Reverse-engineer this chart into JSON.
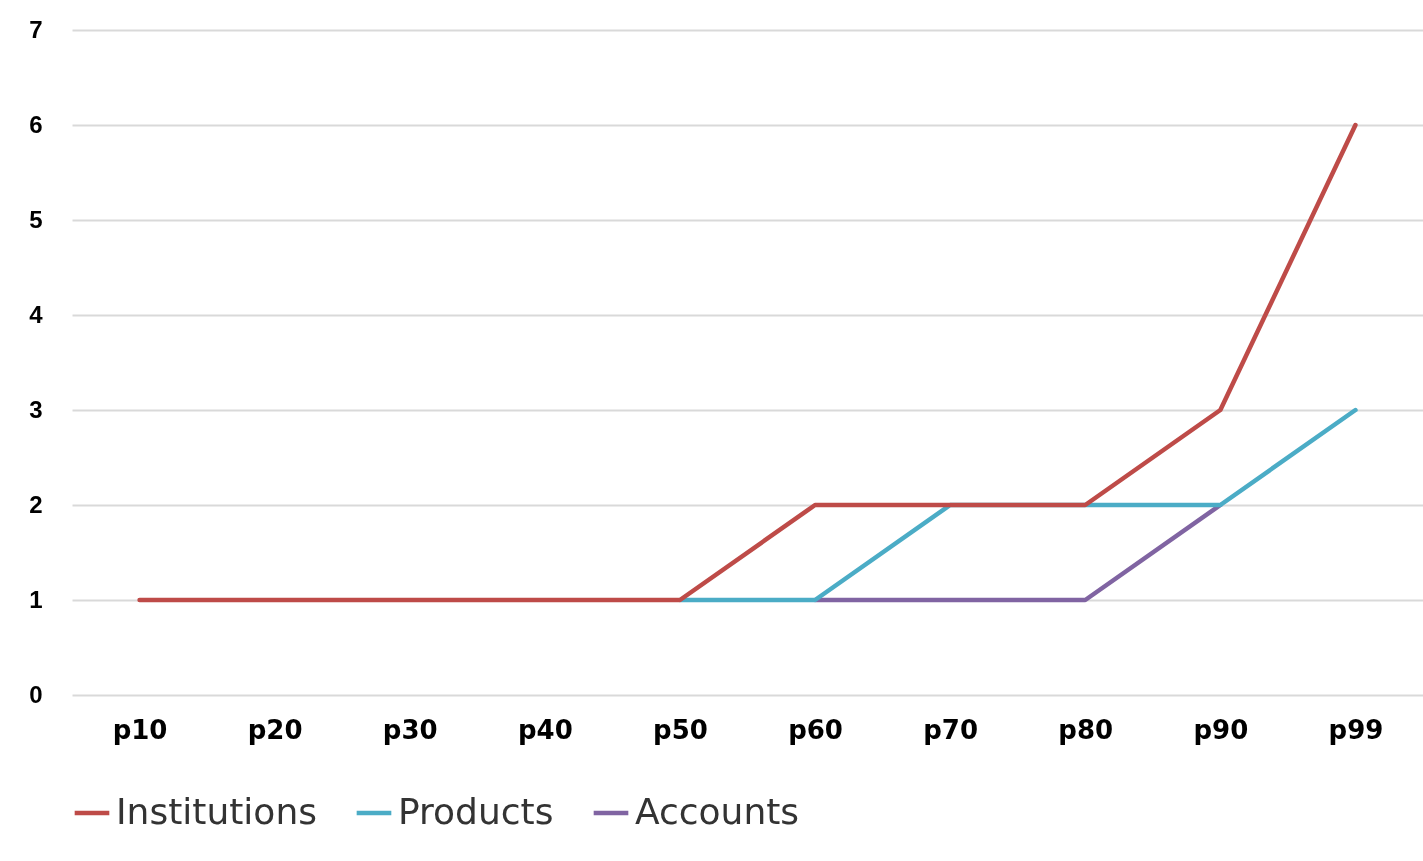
{
  "chart_data": {
    "type": "line",
    "categories": [
      "p10",
      "p20",
      "p30",
      "p40",
      "p50",
      "p60",
      "p70",
      "p80",
      "p90",
      "p99"
    ],
    "series": [
      {
        "name": "Institutions",
        "color": "#be4b48",
        "values": [
          1,
          1,
          1,
          1,
          1,
          2,
          2,
          2,
          3,
          6
        ]
      },
      {
        "name": "Products",
        "color": "#4bacc6",
        "values": [
          null,
          null,
          null,
          null,
          1,
          1,
          2,
          2,
          2,
          3
        ]
      },
      {
        "name": "Accounts",
        "color": "#8064a2",
        "values": [
          null,
          null,
          null,
          null,
          null,
          1,
          1,
          1,
          2,
          null
        ]
      }
    ],
    "ylim": [
      0,
      7
    ],
    "yticks": [
      0,
      1,
      2,
      3,
      4,
      5,
      6,
      7
    ],
    "grid": "y",
    "legend": "bottom",
    "marker": "none",
    "line_style": "solid"
  }
}
